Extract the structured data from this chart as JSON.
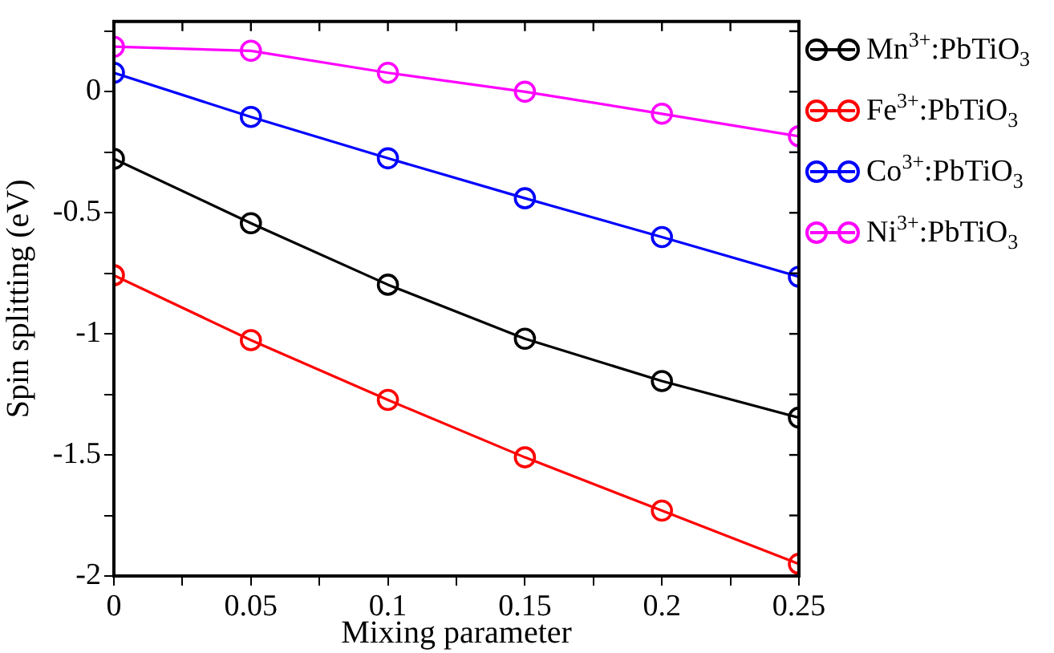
{
  "chart_data": {
    "type": "line",
    "xlabel": "Mixing parameter",
    "ylabel": "Spin splitting (eV)",
    "x": [
      0,
      0.05,
      0.1,
      0.15,
      0.2,
      0.25
    ],
    "series": [
      {
        "name": "Mn$^{3+}$:PbTiO$_{3}$",
        "color": "#000000",
        "values": [
          -0.277,
          -0.543,
          -0.797,
          -1.02,
          -1.195,
          -1.346
        ]
      },
      {
        "name": "Fe$^{3+}$:PbTiO$_{3}$",
        "color": "#ff0000",
        "values": [
          -0.758,
          -1.026,
          -1.273,
          -1.51,
          -1.73,
          -1.95
        ]
      },
      {
        "name": "Co$^{3+}$:PbTiO$_{3}$",
        "color": "#0000ff",
        "values": [
          0.078,
          -0.104,
          -0.275,
          -0.44,
          -0.6,
          -0.764
        ]
      },
      {
        "name": "Ni$^{3+}$:PbTiO$_{3}$",
        "color": "#ff00ff",
        "values": [
          0.186,
          0.169,
          0.078,
          0.0,
          -0.091,
          -0.184
        ]
      }
    ],
    "xlim": [
      0,
      0.25
    ],
    "xticks": [
      0,
      {
        "value": 0.025,
        "label": null
      },
      0.05,
      {
        "value": 0.075,
        "label": null
      },
      0.1,
      {
        "value": 0.125,
        "label": null
      },
      0.15,
      {
        "value": 0.175,
        "label": null
      },
      0.2,
      {
        "value": 0.225,
        "label": null
      },
      0.25
    ],
    "ylim": [
      -2,
      0.29
    ],
    "yticks": [
      -2,
      {
        "value": -1.75,
        "label": null
      },
      -1.5,
      {
        "value": -1.25,
        "label": null
      },
      -1,
      {
        "value": -0.75,
        "label": null
      },
      -0.5,
      {
        "value": -0.25,
        "label": null
      },
      0,
      {
        "value": 0.25,
        "label": null
      }
    ],
    "grid": false,
    "legend": "right",
    "marker": "circle",
    "line_style": "solid"
  }
}
